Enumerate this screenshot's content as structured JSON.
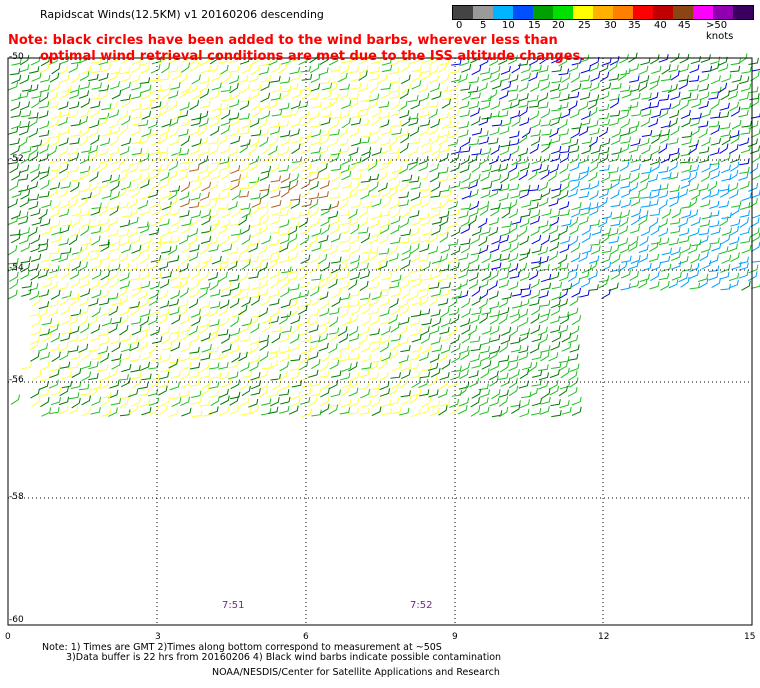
{
  "title": "Rapidscat Winds(12.5KM) v1 20160206 descending",
  "note_line1": "Note: black circles have been added to the wind barbs, wherever less than",
  "note_line2": "optimal wind retrieval conditions are met due to the ISS altitude changes.",
  "colorbar": {
    "labels": [
      "0",
      "5",
      "10",
      "15",
      "20",
      "25",
      "30",
      "35",
      "40",
      "45",
      ">50 knots"
    ],
    "colors": [
      "#444444",
      "#9a9a9a",
      "#00b4ff",
      "#0050ff",
      "#00a000",
      "#00e000",
      "#ffff00",
      "#ffb000",
      "#ff8000",
      "#ff0000",
      "#c00000",
      "#8b4513",
      "#ff00ff",
      "#9000b0",
      "#3a0060"
    ]
  },
  "axes": {
    "lat_labels": [
      "-50",
      "-52",
      "-54",
      "-56",
      "-58",
      "-60"
    ],
    "lon_labels": [
      "0",
      "3",
      "6",
      "9",
      "12",
      "15"
    ]
  },
  "times": [
    "7:51",
    "7:52"
  ],
  "footnote_line1": "Note: 1) Times are GMT 2)Times along bottom correspond to measurement at ~50S",
  "footnote_line2": "3)Data buffer is 22 hrs from 20160206 4) Black wind barbs indicate possible contamination",
  "credit": "NOAA/NESDIS/Center for Satellite Applications and Research",
  "barb_palette": {
    "dark_green": "#007a00",
    "green": "#20c020",
    "yellow": "#ffff40",
    "blue": "#0000e0",
    "light_blue": "#00a0ff",
    "brown": "#b06020"
  }
}
